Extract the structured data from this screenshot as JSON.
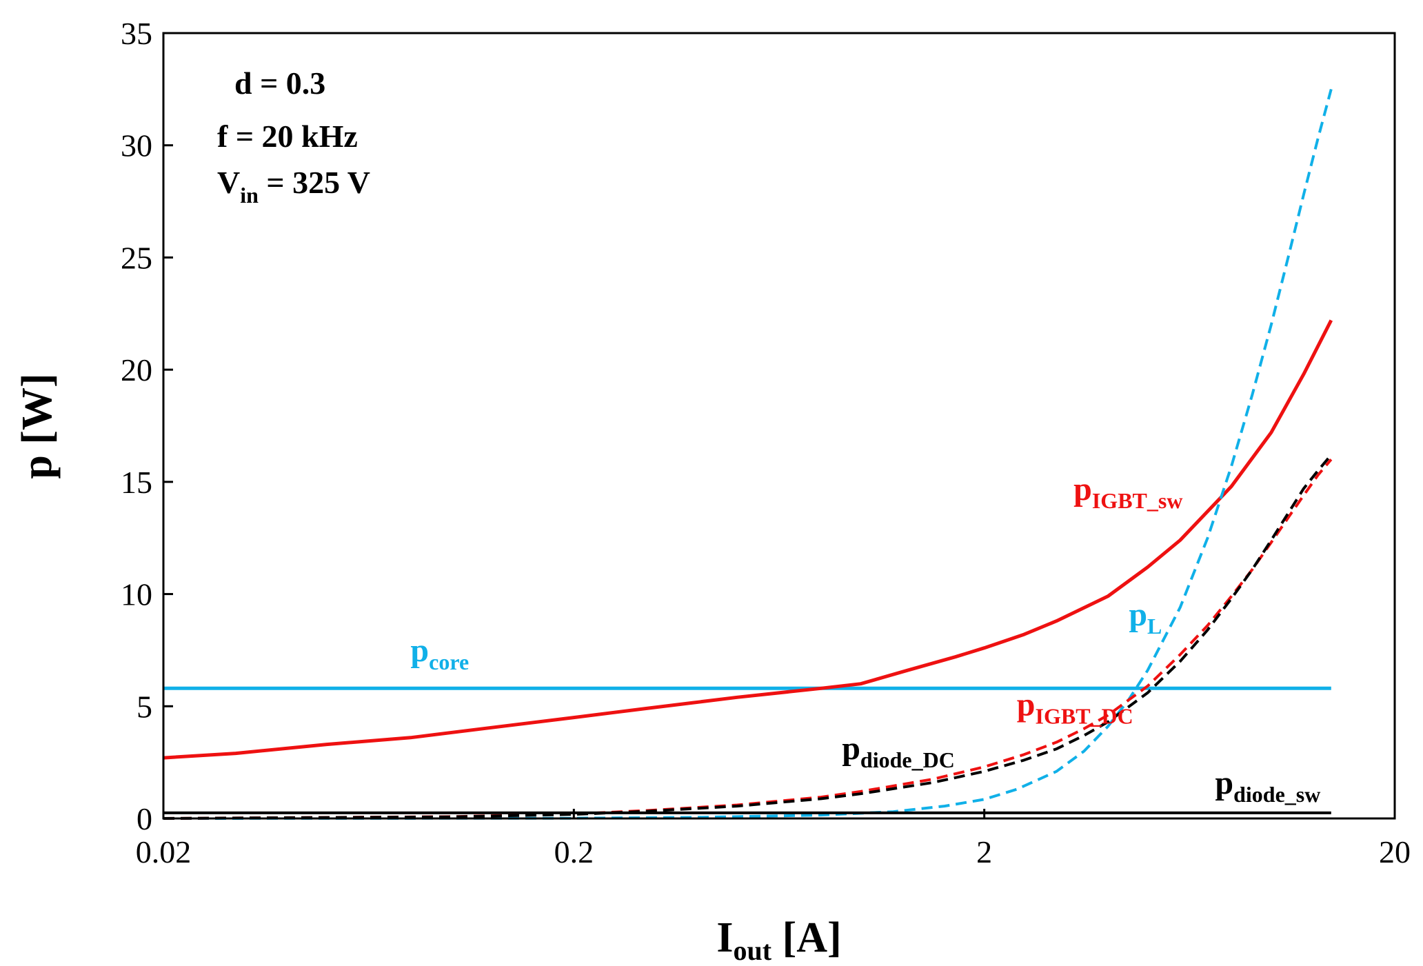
{
  "chart_data": {
    "type": "line",
    "xscale": "log",
    "xlim": [
      0.02,
      20
    ],
    "ylim": [
      0,
      35
    ],
    "xticks": [
      0.02,
      0.2,
      2,
      20
    ],
    "xtick_labels": [
      "0.02",
      "0.2",
      "2",
      "20"
    ],
    "yticks": [
      0,
      5,
      10,
      15,
      20,
      25,
      30,
      35
    ],
    "ytick_labels": [
      "0",
      "5",
      "10",
      "15",
      "20",
      "25",
      "30",
      "35"
    ],
    "xlabel": {
      "main": "I",
      "sub": "out",
      "unit": " [A]"
    },
    "ylabel": "p [W]",
    "grid": false,
    "conditions": {
      "d": "d = 0.3",
      "f": "f = 20 kHz",
      "vin_main": "V",
      "vin_sub": "in",
      "vin_rest": " = 325 V"
    },
    "series": [
      {
        "name": "p_core",
        "label_main": "p",
        "label_sub": "core",
        "color": "#10B0E8",
        "dash": "solid",
        "width": 5,
        "x": [
          0.02,
          14
        ],
        "y": [
          5.8,
          5.8
        ],
        "label_at": [
          0.08,
          7.0
        ]
      },
      {
        "name": "p_IGBT_sw",
        "label_main": "p",
        "label_sub": "IGBT_sw",
        "color": "#EE1111",
        "dash": "solid",
        "width": 5,
        "x": [
          0.02,
          0.03,
          0.05,
          0.08,
          0.12,
          0.2,
          0.3,
          0.5,
          0.8,
          1.0,
          1.3,
          1.7,
          2.0,
          2.5,
          3.0,
          4.0,
          5.0,
          6.0,
          8.0,
          10.0,
          12.0,
          14.0
        ],
        "y": [
          2.7,
          2.9,
          3.3,
          3.6,
          4.0,
          4.5,
          4.9,
          5.4,
          5.8,
          6.0,
          6.6,
          7.2,
          7.6,
          8.2,
          8.8,
          9.9,
          11.2,
          12.4,
          14.8,
          17.2,
          19.8,
          22.2
        ],
        "label_at": [
          3.3,
          14.2
        ]
      },
      {
        "name": "p_L",
        "label_main": "p",
        "label_sub": "L",
        "color": "#10B0E8",
        "dash": "dash",
        "width": 4,
        "x": [
          0.02,
          0.2,
          0.4,
          0.8,
          1.2,
          1.6,
          2.0,
          2.4,
          3.0,
          3.5,
          4.0,
          4.5,
          5.0,
          6.0,
          7.0,
          8.0,
          9.0,
          10.0,
          11.0,
          12.0,
          13.0,
          14.0
        ],
        "y": [
          0.0,
          0.01,
          0.05,
          0.15,
          0.3,
          0.55,
          0.85,
          1.3,
          2.1,
          3.0,
          4.1,
          5.3,
          6.6,
          9.4,
          12.5,
          15.7,
          18.9,
          22.0,
          25.0,
          27.8,
          30.3,
          32.5
        ],
        "label_at": [
          4.5,
          8.6
        ]
      },
      {
        "name": "p_IGBT_DC",
        "label_main": "p",
        "label_sub": "IGBT_DC",
        "color": "#EE1111",
        "dash": "dash",
        "width": 4,
        "x": [
          0.02,
          0.1,
          0.2,
          0.3,
          0.5,
          0.8,
          1.0,
          1.5,
          2.0,
          2.5,
          3.0,
          3.5,
          4.0,
          5.0,
          6.0,
          7.0,
          8.0,
          9.0,
          10.0,
          11.0,
          12.0,
          13.0,
          14.0
        ],
        "y": [
          0.0,
          0.08,
          0.2,
          0.35,
          0.6,
          0.95,
          1.2,
          1.75,
          2.3,
          2.85,
          3.4,
          4.0,
          4.6,
          5.9,
          7.3,
          8.6,
          9.9,
          11.1,
          12.3,
          13.4,
          14.4,
          15.3,
          16.0
        ],
        "label_at": [
          2.4,
          4.6
        ]
      },
      {
        "name": "p_diode_DC",
        "label_main": "p",
        "label_sub": "diode_DC",
        "color": "#000000",
        "dash": "dash",
        "width": 4,
        "x": [
          0.02,
          0.1,
          0.2,
          0.3,
          0.5,
          0.8,
          1.0,
          1.5,
          2.0,
          2.5,
          3.0,
          3.5,
          4.0,
          5.0,
          6.0,
          7.0,
          8.0,
          9.0,
          10.0,
          11.0,
          12.0,
          13.0,
          14.0
        ],
        "y": [
          0.0,
          0.07,
          0.18,
          0.32,
          0.55,
          0.88,
          1.1,
          1.6,
          2.1,
          2.6,
          3.1,
          3.7,
          4.3,
          5.6,
          7.0,
          8.4,
          9.8,
          11.1,
          12.4,
          13.6,
          14.7,
          15.5,
          16.2
        ],
        "label_at": [
          0.9,
          2.65
        ]
      },
      {
        "name": "p_diode_sw",
        "label_main": "p",
        "label_sub": "diode_sw",
        "color": "#000000",
        "dash": "solid",
        "width": 4,
        "x": [
          0.02,
          14
        ],
        "y": [
          0.25,
          0.25
        ],
        "label_at": [
          7.3,
          1.1
        ]
      }
    ]
  }
}
